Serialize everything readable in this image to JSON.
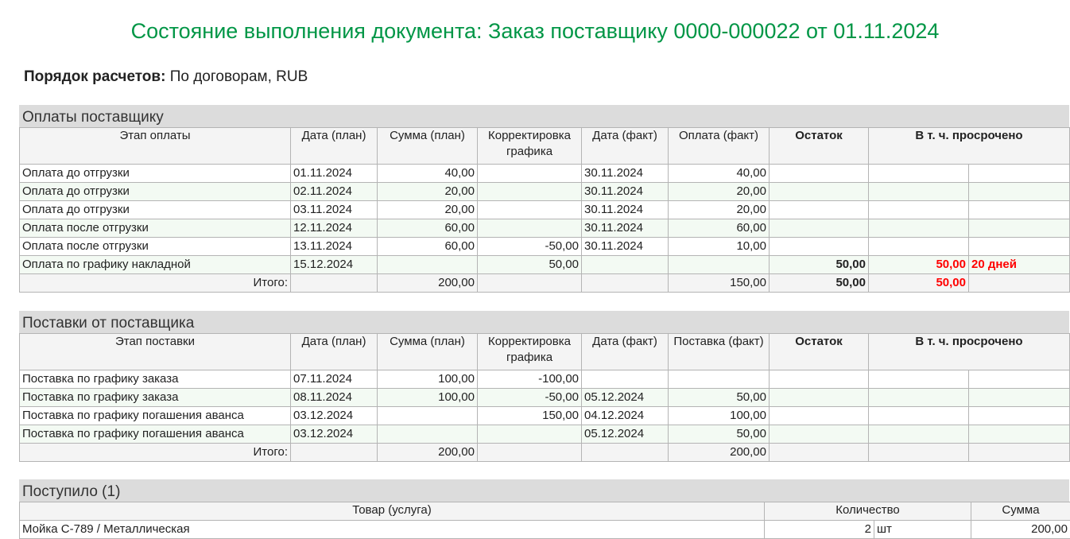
{
  "title": "Состояние выполнения документа: Заказ поставщику 0000-000022 от 01.11.2024",
  "settlement": {
    "label": "Порядок расчетов:",
    "value": "По договорам, RUB"
  },
  "colors": {
    "title": "#009646",
    "overdue": "#ff0000",
    "alt_row": "#f3faf3"
  },
  "payments": {
    "title": "Оплаты поставщику",
    "headers": [
      "Этап оплаты",
      "Дата (план)",
      "Сумма (план)",
      "Корректировка графика",
      "Дата (факт)",
      "Оплата (факт)",
      "Остаток",
      "В т. ч. просрочено"
    ],
    "rows": [
      [
        "Оплата до отгрузки",
        "01.11.2024",
        "40,00",
        "",
        "30.11.2024",
        "40,00",
        "",
        "",
        ""
      ],
      [
        "Оплата до отгрузки",
        "02.11.2024",
        "20,00",
        "",
        "30.11.2024",
        "20,00",
        "",
        "",
        ""
      ],
      [
        "Оплата до отгрузки",
        "03.11.2024",
        "20,00",
        "",
        "30.11.2024",
        "20,00",
        "",
        "",
        ""
      ],
      [
        "Оплата после отгрузки",
        "12.11.2024",
        "60,00",
        "",
        "30.11.2024",
        "60,00",
        "",
        "",
        ""
      ],
      [
        "Оплата после отгрузки",
        "13.11.2024",
        "60,00",
        "-50,00",
        "30.11.2024",
        "10,00",
        "",
        "",
        ""
      ],
      [
        "Оплата по графику накладной",
        "15.12.2024",
        "",
        "50,00",
        "",
        "",
        "50,00",
        "50,00",
        "20 дней"
      ]
    ],
    "total": [
      "Итого:",
      "",
      "200,00",
      "",
      "",
      "150,00",
      "50,00",
      "50,00",
      ""
    ]
  },
  "deliveries": {
    "title": "Поставки от поставщика",
    "headers": [
      "Этап поставки",
      "Дата (план)",
      "Сумма (план)",
      "Корректировка графика",
      "Дата (факт)",
      "Поставка (факт)",
      "Остаток",
      "В т. ч. просрочено"
    ],
    "rows": [
      [
        "Поставка по графику заказа",
        "07.11.2024",
        "100,00",
        "-100,00",
        "",
        "",
        "",
        "",
        ""
      ],
      [
        "Поставка по графику заказа",
        "08.11.2024",
        "100,00",
        "-50,00",
        "05.12.2024",
        "50,00",
        "",
        "",
        ""
      ],
      [
        "Поставка по графику погашения аванса",
        "03.12.2024",
        "",
        "150,00",
        "04.12.2024",
        "100,00",
        "",
        "",
        ""
      ],
      [
        "Поставка по графику погашения аванса",
        "03.12.2024",
        "",
        "",
        "05.12.2024",
        "50,00",
        "",
        "",
        ""
      ]
    ],
    "total": [
      "Итого:",
      "",
      "200,00",
      "",
      "",
      "200,00",
      "",
      "",
      ""
    ]
  },
  "received": {
    "title": "Поступило (1)",
    "headers": [
      "Товар (услуга)",
      "Количество",
      "Сумма"
    ],
    "rows": [
      [
        "Мойка С-789 / Металлическая",
        "2",
        "шт",
        "200,00"
      ]
    ]
  }
}
